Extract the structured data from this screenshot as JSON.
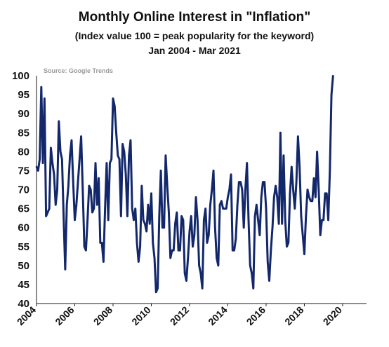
{
  "title": "Monthly Online Interest in \"Inflation\"",
  "subtitle": "(Index value 100 = peak popularity for the keyword)",
  "date_range": "Jan 2004 - Mar 2021",
  "source": "Source:  Google  Trends",
  "colors": {
    "line": "#13276b",
    "axis": "#1a1a1a",
    "source": "#9a9a9a"
  },
  "chart_data": {
    "type": "line",
    "title": "Monthly Online Interest in \"Inflation\"",
    "subtitle": "(Index value 100 = peak popularity for the keyword)",
    "period": "Jan 2004 - Mar 2021",
    "x_start": "2004-01",
    "x_frequency": "monthly",
    "xlim": [
      2004,
      2021.25
    ],
    "ylim": [
      40,
      100
    ],
    "y_ticks": [
      100,
      95,
      90,
      85,
      80,
      75,
      70,
      65,
      60,
      55,
      50,
      45,
      40
    ],
    "x_ticks": [
      "2004",
      "2006",
      "2008",
      "2010",
      "2012",
      "2014",
      "2016",
      "2018",
      "2020"
    ],
    "grid": false,
    "legend": "none",
    "series": [
      {
        "values": [
          76,
          75,
          78,
          97,
          77,
          94,
          63,
          64,
          65,
          81,
          77,
          74,
          66,
          70,
          88,
          80,
          78,
          63,
          49,
          66,
          71,
          79,
          83,
          72,
          62,
          66,
          72,
          78,
          84,
          70,
          55,
          54,
          62,
          71,
          70,
          64,
          65,
          77,
          66,
          73,
          56,
          56,
          51,
          65,
          77,
          62,
          77,
          78,
          94,
          92,
          85,
          79,
          78,
          63,
          82,
          80,
          74,
          63,
          79,
          83,
          65,
          62,
          65,
          56,
          51,
          55,
          71,
          62,
          61,
          59,
          66,
          61,
          69,
          56,
          52,
          43,
          44,
          63,
          75,
          60,
          60,
          79,
          71,
          64,
          52,
          54,
          54,
          61,
          64,
          54,
          54,
          63,
          62,
          48,
          46,
          52,
          59,
          63,
          55,
          58,
          68,
          62,
          50,
          48,
          44,
          62,
          65,
          56,
          58,
          66,
          70,
          75,
          60,
          52,
          50,
          66,
          67,
          65,
          65,
          65,
          68,
          70,
          74,
          54,
          54,
          57,
          66,
          72,
          72,
          70,
          60,
          70,
          77,
          62,
          50,
          48,
          44,
          63,
          66,
          62,
          58,
          68,
          72,
          72,
          65,
          51,
          46,
          54,
          60,
          68,
          71,
          68,
          61,
          85,
          61,
          79,
          62,
          55,
          56,
          69,
          76,
          70,
          65,
          72,
          84,
          76,
          63,
          58,
          53,
          63,
          70,
          68,
          67,
          67,
          73,
          68,
          80,
          70,
          58,
          62,
          62,
          69,
          69,
          62,
          75,
          95,
          100
        ]
      }
    ]
  }
}
